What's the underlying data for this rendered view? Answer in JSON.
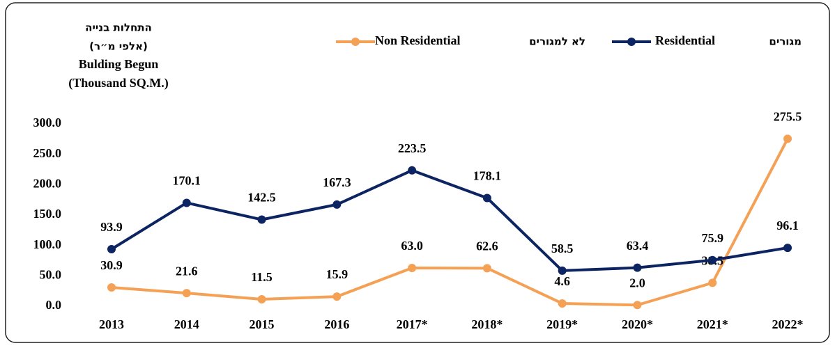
{
  "chart_data": {
    "type": "line",
    "title_lines": [
      "התחלות בנייה",
      "(אלפי מ״ר)",
      "Bulding Begun",
      "(Thousand SQ.M.)"
    ],
    "categories": [
      "2013",
      "2014",
      "2015",
      "2016",
      "2017*",
      "2018*",
      "2019*",
      "2020*",
      "2021*",
      "2022*"
    ],
    "series": [
      {
        "name": "Non Residential",
        "name_he": "לא למגורים",
        "color": "#f4a155",
        "values": [
          30.9,
          21.6,
          11.5,
          15.9,
          63.0,
          62.6,
          4.6,
          2.0,
          38.5,
          275.5
        ],
        "value_labels": [
          "30.9",
          "21.6",
          "11.5",
          "15.9",
          "63.0",
          "62.6",
          "4.6",
          "2.0",
          "38.5",
          "275.5"
        ]
      },
      {
        "name": "Residential",
        "name_he": "מגורים",
        "color": "#0d2463",
        "values": [
          93.9,
          170.1,
          142.5,
          167.3,
          223.5,
          178.1,
          58.5,
          63.4,
          75.9,
          96.1
        ],
        "value_labels": [
          "93.9",
          "170.1",
          "142.5",
          "167.3",
          "223.5",
          "178.1",
          "58.5",
          "63.4",
          "75.9",
          "96.1"
        ]
      }
    ],
    "ylim": [
      0,
      300
    ],
    "yticks": [
      {
        "value": 0,
        "label": "0.0"
      },
      {
        "value": 50,
        "label": "50.0"
      },
      {
        "value": 100,
        "label": "100.0"
      },
      {
        "value": 150,
        "label": "150.0"
      },
      {
        "value": 200,
        "label": "200.0"
      },
      {
        "value": 250,
        "label": "250.0"
      },
      {
        "value": 300,
        "label": "300.0"
      }
    ],
    "grid": false
  }
}
